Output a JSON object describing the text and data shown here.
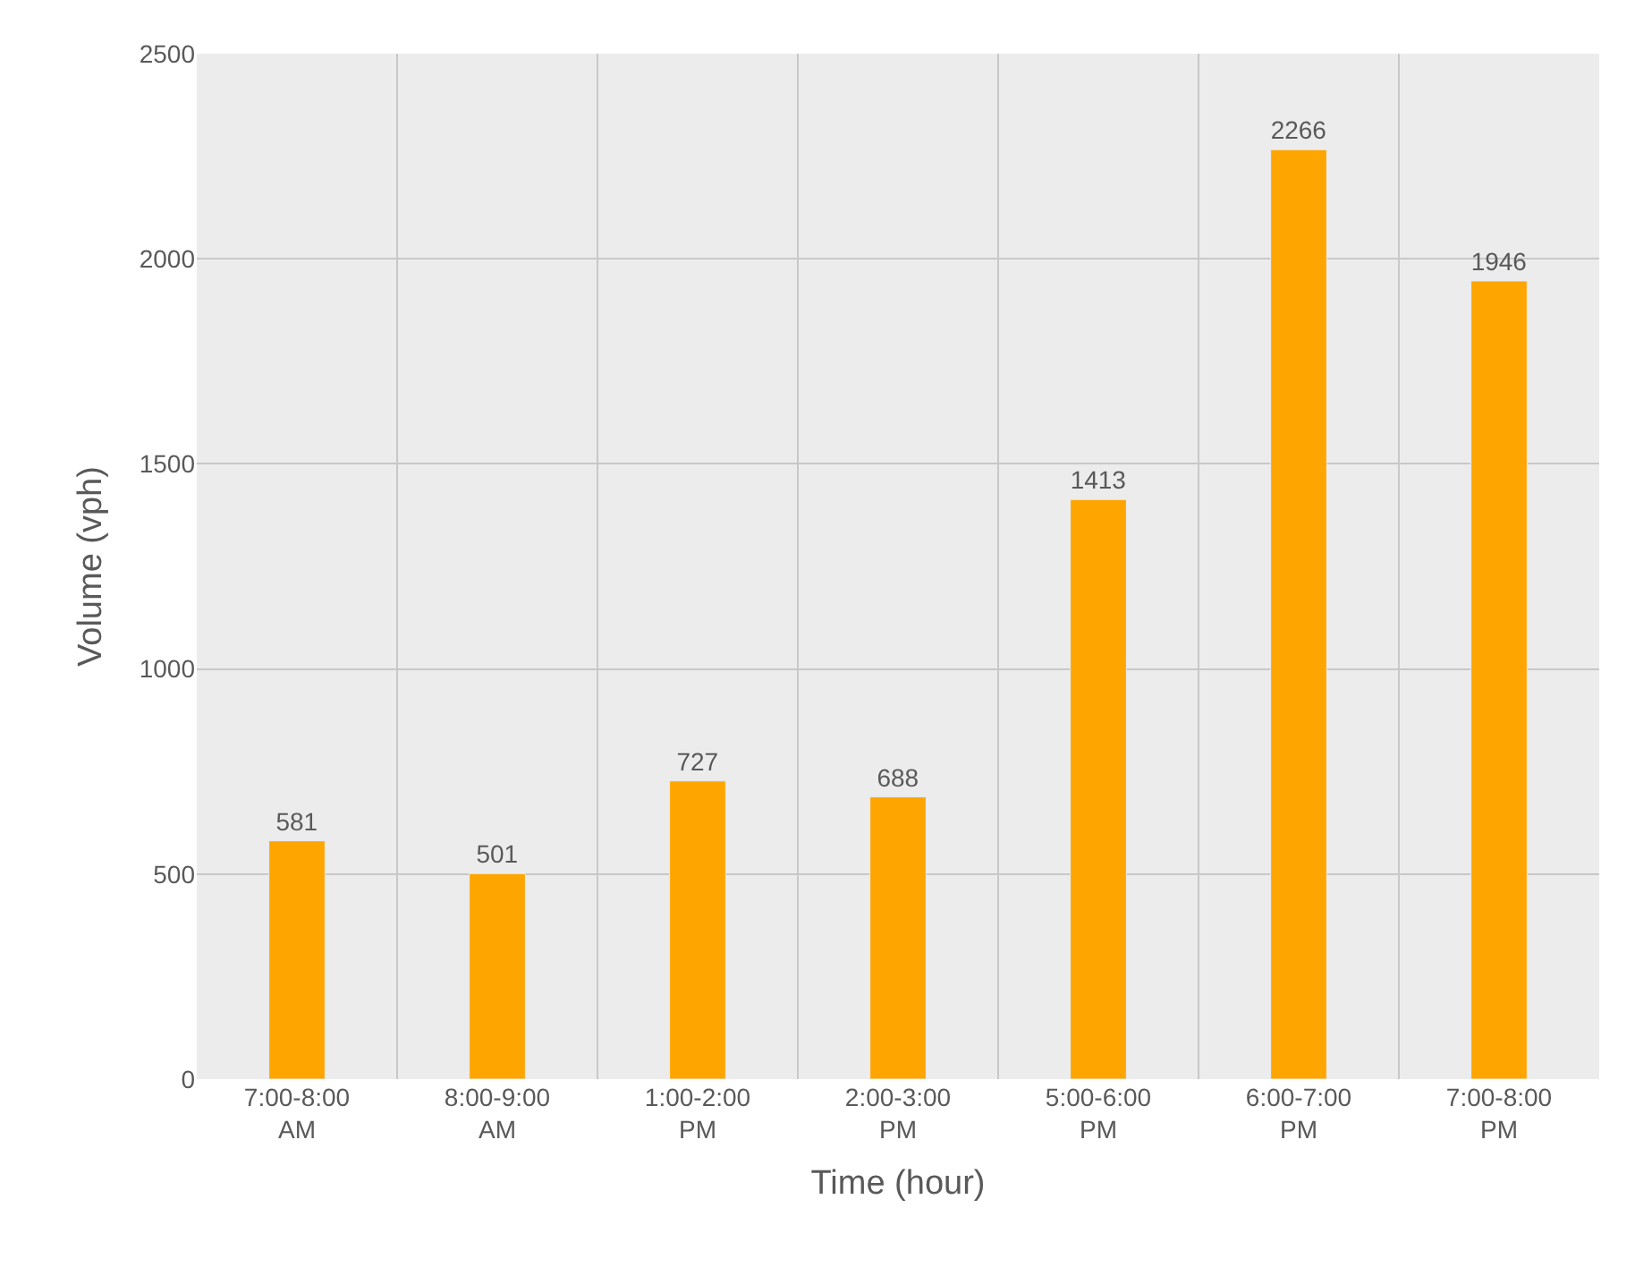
{
  "chart_data": {
    "type": "bar",
    "xlabel": "Time (hour)",
    "ylabel": "Volume (vph)",
    "categories": [
      "7:00-8:00 AM",
      "8:00-9:00 AM",
      "1:00-2:00 PM",
      "2:00-3:00 PM",
      "5:00-6:00 PM",
      "6:00-7:00 PM",
      "7:00-8:00 PM"
    ],
    "values": [
      581,
      501,
      727,
      688,
      1413,
      2266,
      1946
    ],
    "color": "#ffa500",
    "ylim": [
      0,
      2500
    ],
    "yticks": [
      0,
      500,
      1000,
      1500,
      2000,
      2500
    ],
    "grid": true,
    "data_labels": true
  }
}
